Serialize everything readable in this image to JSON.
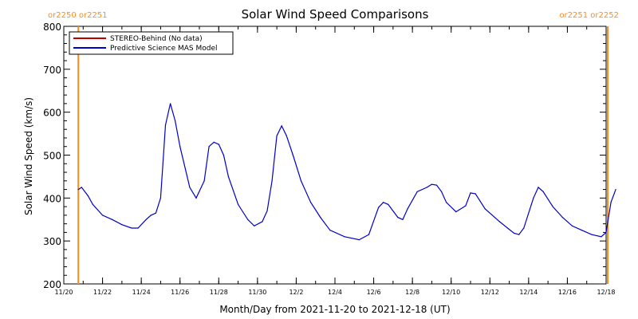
{
  "chart_data": {
    "type": "line",
    "title": "Solar Wind Speed Comparisons",
    "xlabel": "Month/Day from 2021-11-20 to 2021-12-18 (UT)",
    "ylabel": "Solar Wind Speed (km/s)",
    "ylim": [
      200,
      800
    ],
    "xlim": [
      "2021-11-20",
      "2021-12-18"
    ],
    "yticks": [
      "200",
      "300",
      "400",
      "500",
      "600",
      "700",
      "800"
    ],
    "xticks": [
      {
        "label": "11/20",
        "x": "2021-11-20"
      },
      {
        "label": "11/22",
        "x": "2021-11-22"
      },
      {
        "label": "11/24",
        "x": "2021-11-24"
      },
      {
        "label": "11/26",
        "x": "2021-11-26"
      },
      {
        "label": "11/28",
        "x": "2021-11-28"
      },
      {
        "label": "11/30",
        "x": "2021-11-30"
      },
      {
        "label": "12/2",
        "x": "2021-12-02"
      },
      {
        "label": "12/4",
        "x": "2021-12-04"
      },
      {
        "label": "12/6",
        "x": "2021-12-06"
      },
      {
        "label": "12/8",
        "x": "2021-12-08"
      },
      {
        "label": "12/10",
        "x": "2021-12-10"
      },
      {
        "label": "12/12",
        "x": "2021-12-12"
      },
      {
        "label": "12/14",
        "x": "2021-12-14"
      },
      {
        "label": "12/16",
        "x": "2021-12-16"
      },
      {
        "label": "12/18",
        "x": "2021-12-18"
      }
    ],
    "legend_position": "top-left",
    "legend": [
      {
        "label": "STEREO-Behind (No data)",
        "color": "#c00000"
      },
      {
        "label": "Predictive Science MAS Model",
        "color": "#0000c8"
      }
    ],
    "carrington_markers": [
      {
        "label": "or2250 or2251",
        "x": "2021-11-20 18:00",
        "side": "left"
      },
      {
        "label": "or2251 or2252",
        "x": "2021-12-18 02:00",
        "side": "right"
      }
    ],
    "marker_color": "#ff8c1a",
    "series": [
      {
        "name": "Predictive Science MAS Model",
        "color": "#0000c8",
        "points": [
          [
            "2021-11-20 18:00",
            420
          ],
          [
            "2021-11-20 22:00",
            425
          ],
          [
            "2021-11-21 06:00",
            405
          ],
          [
            "2021-11-21 12:00",
            385
          ],
          [
            "2021-11-22 00:00",
            360
          ],
          [
            "2021-11-22 12:00",
            350
          ],
          [
            "2021-11-23 00:00",
            338
          ],
          [
            "2021-11-23 12:00",
            330
          ],
          [
            "2021-11-23 20:00",
            330
          ],
          [
            "2021-11-24 06:00",
            350
          ],
          [
            "2021-11-24 12:00",
            360
          ],
          [
            "2021-11-24 18:00",
            365
          ],
          [
            "2021-11-25 00:00",
            400
          ],
          [
            "2021-11-25 06:00",
            570
          ],
          [
            "2021-11-25 12:00",
            620
          ],
          [
            "2021-11-25 18:00",
            580
          ],
          [
            "2021-11-26 00:00",
            520
          ],
          [
            "2021-11-26 12:00",
            425
          ],
          [
            "2021-11-26 20:00",
            400
          ],
          [
            "2021-11-27 06:00",
            440
          ],
          [
            "2021-11-27 12:00",
            520
          ],
          [
            "2021-11-27 18:00",
            530
          ],
          [
            "2021-11-28 00:00",
            525
          ],
          [
            "2021-11-28 06:00",
            500
          ],
          [
            "2021-11-28 12:00",
            450
          ],
          [
            "2021-11-29 00:00",
            385
          ],
          [
            "2021-11-29 12:00",
            350
          ],
          [
            "2021-11-29 20:00",
            335
          ],
          [
            "2021-11-30 06:00",
            345
          ],
          [
            "2021-11-30 12:00",
            370
          ],
          [
            "2021-11-30 18:00",
            440
          ],
          [
            "2021-12-01 00:00",
            545
          ],
          [
            "2021-12-01 06:00",
            568
          ],
          [
            "2021-12-01 12:00",
            545
          ],
          [
            "2021-12-01 20:00",
            500
          ],
          [
            "2021-12-02 06:00",
            440
          ],
          [
            "2021-12-02 18:00",
            390
          ],
          [
            "2021-12-03 06:00",
            355
          ],
          [
            "2021-12-03 18:00",
            325
          ],
          [
            "2021-12-04 12:00",
            310
          ],
          [
            "2021-12-05 06:00",
            303
          ],
          [
            "2021-12-05 18:00",
            315
          ],
          [
            "2021-12-06 06:00",
            378
          ],
          [
            "2021-12-06 12:00",
            390
          ],
          [
            "2021-12-06 18:00",
            385
          ],
          [
            "2021-12-07 06:00",
            355
          ],
          [
            "2021-12-07 12:00",
            350
          ],
          [
            "2021-12-07 18:00",
            375
          ],
          [
            "2021-12-08 06:00",
            415
          ],
          [
            "2021-12-08 18:00",
            425
          ],
          [
            "2021-12-09 00:00",
            432
          ],
          [
            "2021-12-09 06:00",
            430
          ],
          [
            "2021-12-09 12:00",
            415
          ],
          [
            "2021-12-09 18:00",
            390
          ],
          [
            "2021-12-10 06:00",
            368
          ],
          [
            "2021-12-10 18:00",
            382
          ],
          [
            "2021-12-11 00:00",
            412
          ],
          [
            "2021-12-11 06:00",
            410
          ],
          [
            "2021-12-11 18:00",
            375
          ],
          [
            "2021-12-12 12:00",
            345
          ],
          [
            "2021-12-13 06:00",
            318
          ],
          [
            "2021-12-13 12:00",
            315
          ],
          [
            "2021-12-13 18:00",
            330
          ],
          [
            "2021-12-14 06:00",
            400
          ],
          [
            "2021-12-14 12:00",
            425
          ],
          [
            "2021-12-14 18:00",
            415
          ],
          [
            "2021-12-15 06:00",
            380
          ],
          [
            "2021-12-15 18:00",
            355
          ],
          [
            "2021-12-16 06:00",
            335
          ],
          [
            "2021-12-16 18:00",
            325
          ],
          [
            "2021-12-17 06:00",
            315
          ],
          [
            "2021-12-17 18:00",
            310
          ],
          [
            "2021-12-18 00:00",
            320
          ],
          [
            "2021-12-18 06:00",
            390
          ],
          [
            "2021-12-18 12:00",
            420
          ]
        ]
      }
    ]
  }
}
